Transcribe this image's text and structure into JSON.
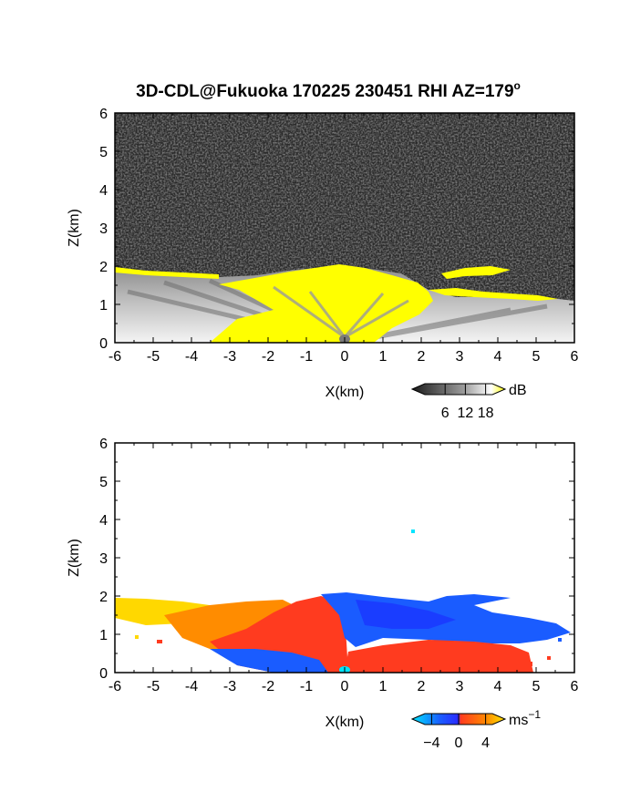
{
  "title": "3D-CDL@Fukuoka 170225 230451 RHI AZ=179",
  "title_suffix": "o",
  "chart_data": [
    {
      "type": "heatmap",
      "name": "backscatter-intensity",
      "xlabel": "X(km)",
      "ylabel": "Z(km)",
      "xlim": [
        -6,
        6
      ],
      "ylim": [
        0,
        6
      ],
      "xticks": [
        "-6",
        "-5",
        "-4",
        "-3",
        "-2",
        "-1",
        "0",
        "1",
        "2",
        "3",
        "4",
        "5",
        "6"
      ],
      "yticks": [
        "0",
        "1",
        "2",
        "3",
        "4",
        "5",
        "6"
      ],
      "colorbar": {
        "label": "dB",
        "ticks": [
          "6",
          "12",
          "18"
        ],
        "range": [
          0,
          20
        ],
        "colors": [
          "#202020",
          "#ffffff",
          "#ffff00"
        ]
      },
      "background_color": "#2a2a2a",
      "saturated_color": "#ffff00",
      "echo_top_km": [
        {
          "x": -6.0,
          "z": 1.9
        },
        {
          "x": -5.0,
          "z": 1.8
        },
        {
          "x": -4.0,
          "z": 1.75
        },
        {
          "x": -3.0,
          "z": 1.7
        },
        {
          "x": -2.0,
          "z": 1.75
        },
        {
          "x": -1.0,
          "z": 1.9
        },
        {
          "x": 0.0,
          "z": 2.0
        },
        {
          "x": 1.0,
          "z": 1.85
        },
        {
          "x": 2.0,
          "z": 1.6
        },
        {
          "x": 3.0,
          "z": 1.3
        },
        {
          "x": 4.0,
          "z": 1.2
        },
        {
          "x": 5.0,
          "z": 1.2
        },
        {
          "x": 5.7,
          "z": 1.0
        }
      ],
      "elevated_layer": {
        "x_range": [
          2.3,
          4.4
        ],
        "z_range": [
          1.6,
          2.0
        ]
      },
      "saturated_region": {
        "x_range": [
          -3.8,
          3.5
        ],
        "z_range": [
          0,
          2.0
        ]
      }
    },
    {
      "type": "heatmap",
      "name": "doppler-velocity",
      "xlabel": "X(km)",
      "ylabel": "Z(km)",
      "xlim": [
        -6,
        6
      ],
      "ylim": [
        0,
        6
      ],
      "xticks": [
        "-6",
        "-5",
        "-4",
        "-3",
        "-2",
        "-1",
        "0",
        "1",
        "2",
        "3",
        "4",
        "5",
        "6"
      ],
      "yticks": [
        "0",
        "1",
        "2",
        "3",
        "4",
        "5",
        "6"
      ],
      "colorbar": {
        "label": "ms",
        "label_exponent": "−1",
        "ticks": [
          "−4",
          "0",
          "4"
        ],
        "range": [
          -5,
          5
        ],
        "colors": [
          "#00e5ff",
          "#1a5cff",
          "#ff3b1f",
          "#ffe600"
        ]
      },
      "velocity_by_region": [
        {
          "x_range": [
            -6.0,
            -3.5
          ],
          "z_range": [
            0.9,
            1.9
          ],
          "velocity": 4.5
        },
        {
          "x_range": [
            -3.5,
            -1.0
          ],
          "z_range": [
            0.6,
            2.0
          ],
          "velocity": 2.5
        },
        {
          "x_range": [
            -1.0,
            6.0
          ],
          "z_range": [
            0.8,
            2.0
          ],
          "velocity": -2.5
        },
        {
          "x_range": [
            -0.3,
            5.0
          ],
          "z_range": [
            0.0,
            0.6
          ],
          "velocity": 2.0
        },
        {
          "x_range": [
            -2.5,
            -0.5
          ],
          "z_range": [
            0.0,
            0.4
          ],
          "velocity": -2.0
        }
      ],
      "isolated_echo": {
        "x": 1.8,
        "z": 3.7,
        "velocity": -5
      }
    }
  ]
}
